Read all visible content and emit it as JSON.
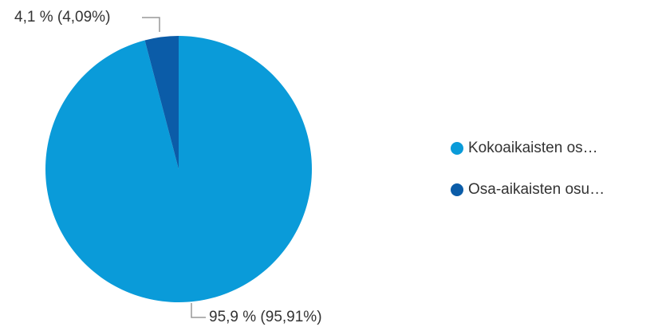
{
  "chart_data": {
    "type": "pie",
    "categories": [
      "Kokoaikaisten os…",
      "Osa-aikaisten osu…"
    ],
    "values": [
      95.91,
      4.09
    ],
    "value_labels": [
      "95,9 % (95,91%)",
      "4,1 % (4,09%)"
    ],
    "colors": [
      "#0a9bd9",
      "#0b5ca8"
    ],
    "legend": "right"
  }
}
